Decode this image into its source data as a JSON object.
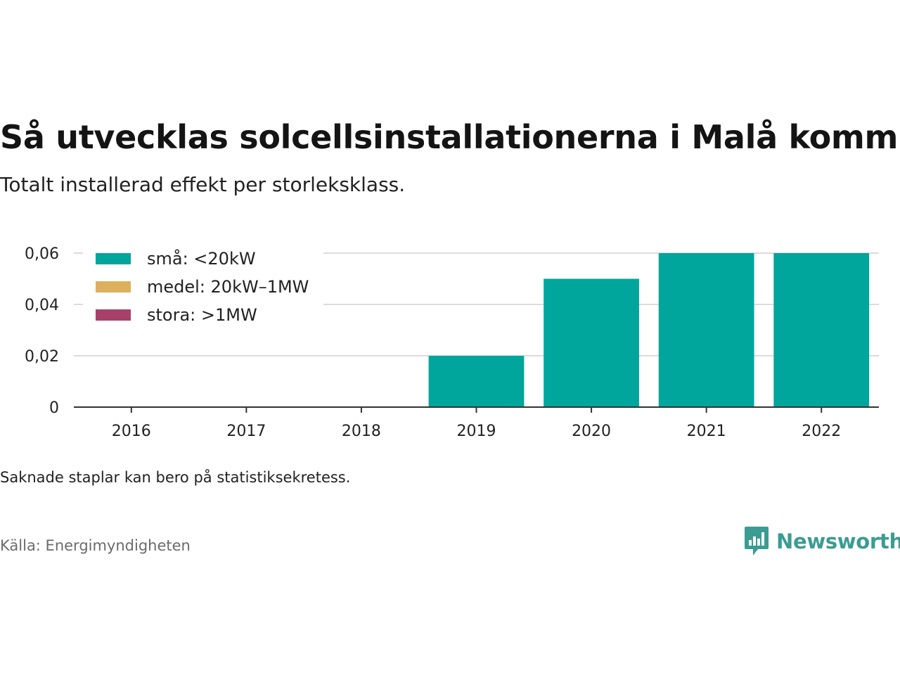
{
  "header": {
    "title": "Så utvecklas solcellsinstallationerna i Malå kommun",
    "subtitle": "Totalt installerad effekt per storleksklass."
  },
  "footer": {
    "note": "Saknade staplar kan bero på statistiksekretess.",
    "source": "Källa: Energimyndigheten",
    "brand": "Newsworthy",
    "brand_color": "#3b9c92"
  },
  "chart_data": {
    "type": "bar",
    "stacked": true,
    "categories": [
      "2016",
      "2017",
      "2018",
      "2019",
      "2020",
      "2021",
      "2022"
    ],
    "series": [
      {
        "name": "små: <20kW",
        "color": "#00a59b",
        "values": [
          0,
          0,
          0,
          0.02,
          0.05,
          0.06,
          0.06
        ]
      },
      {
        "name": "medel: 20kW–1MW",
        "color": "#ddb05d",
        "values": [
          0,
          0,
          0,
          0,
          0,
          0,
          0
        ]
      },
      {
        "name": "stora: >1MW",
        "color": "#a8416a",
        "values": [
          0,
          0,
          0,
          0,
          0,
          0,
          0
        ]
      }
    ],
    "yticks": [
      0,
      0.02,
      0.04,
      0.06
    ],
    "ytick_labels": [
      "0",
      "0,02",
      "0,04",
      "0,06"
    ],
    "ylim": [
      0,
      0.06
    ],
    "grid": true,
    "legend_position": "top-left"
  }
}
